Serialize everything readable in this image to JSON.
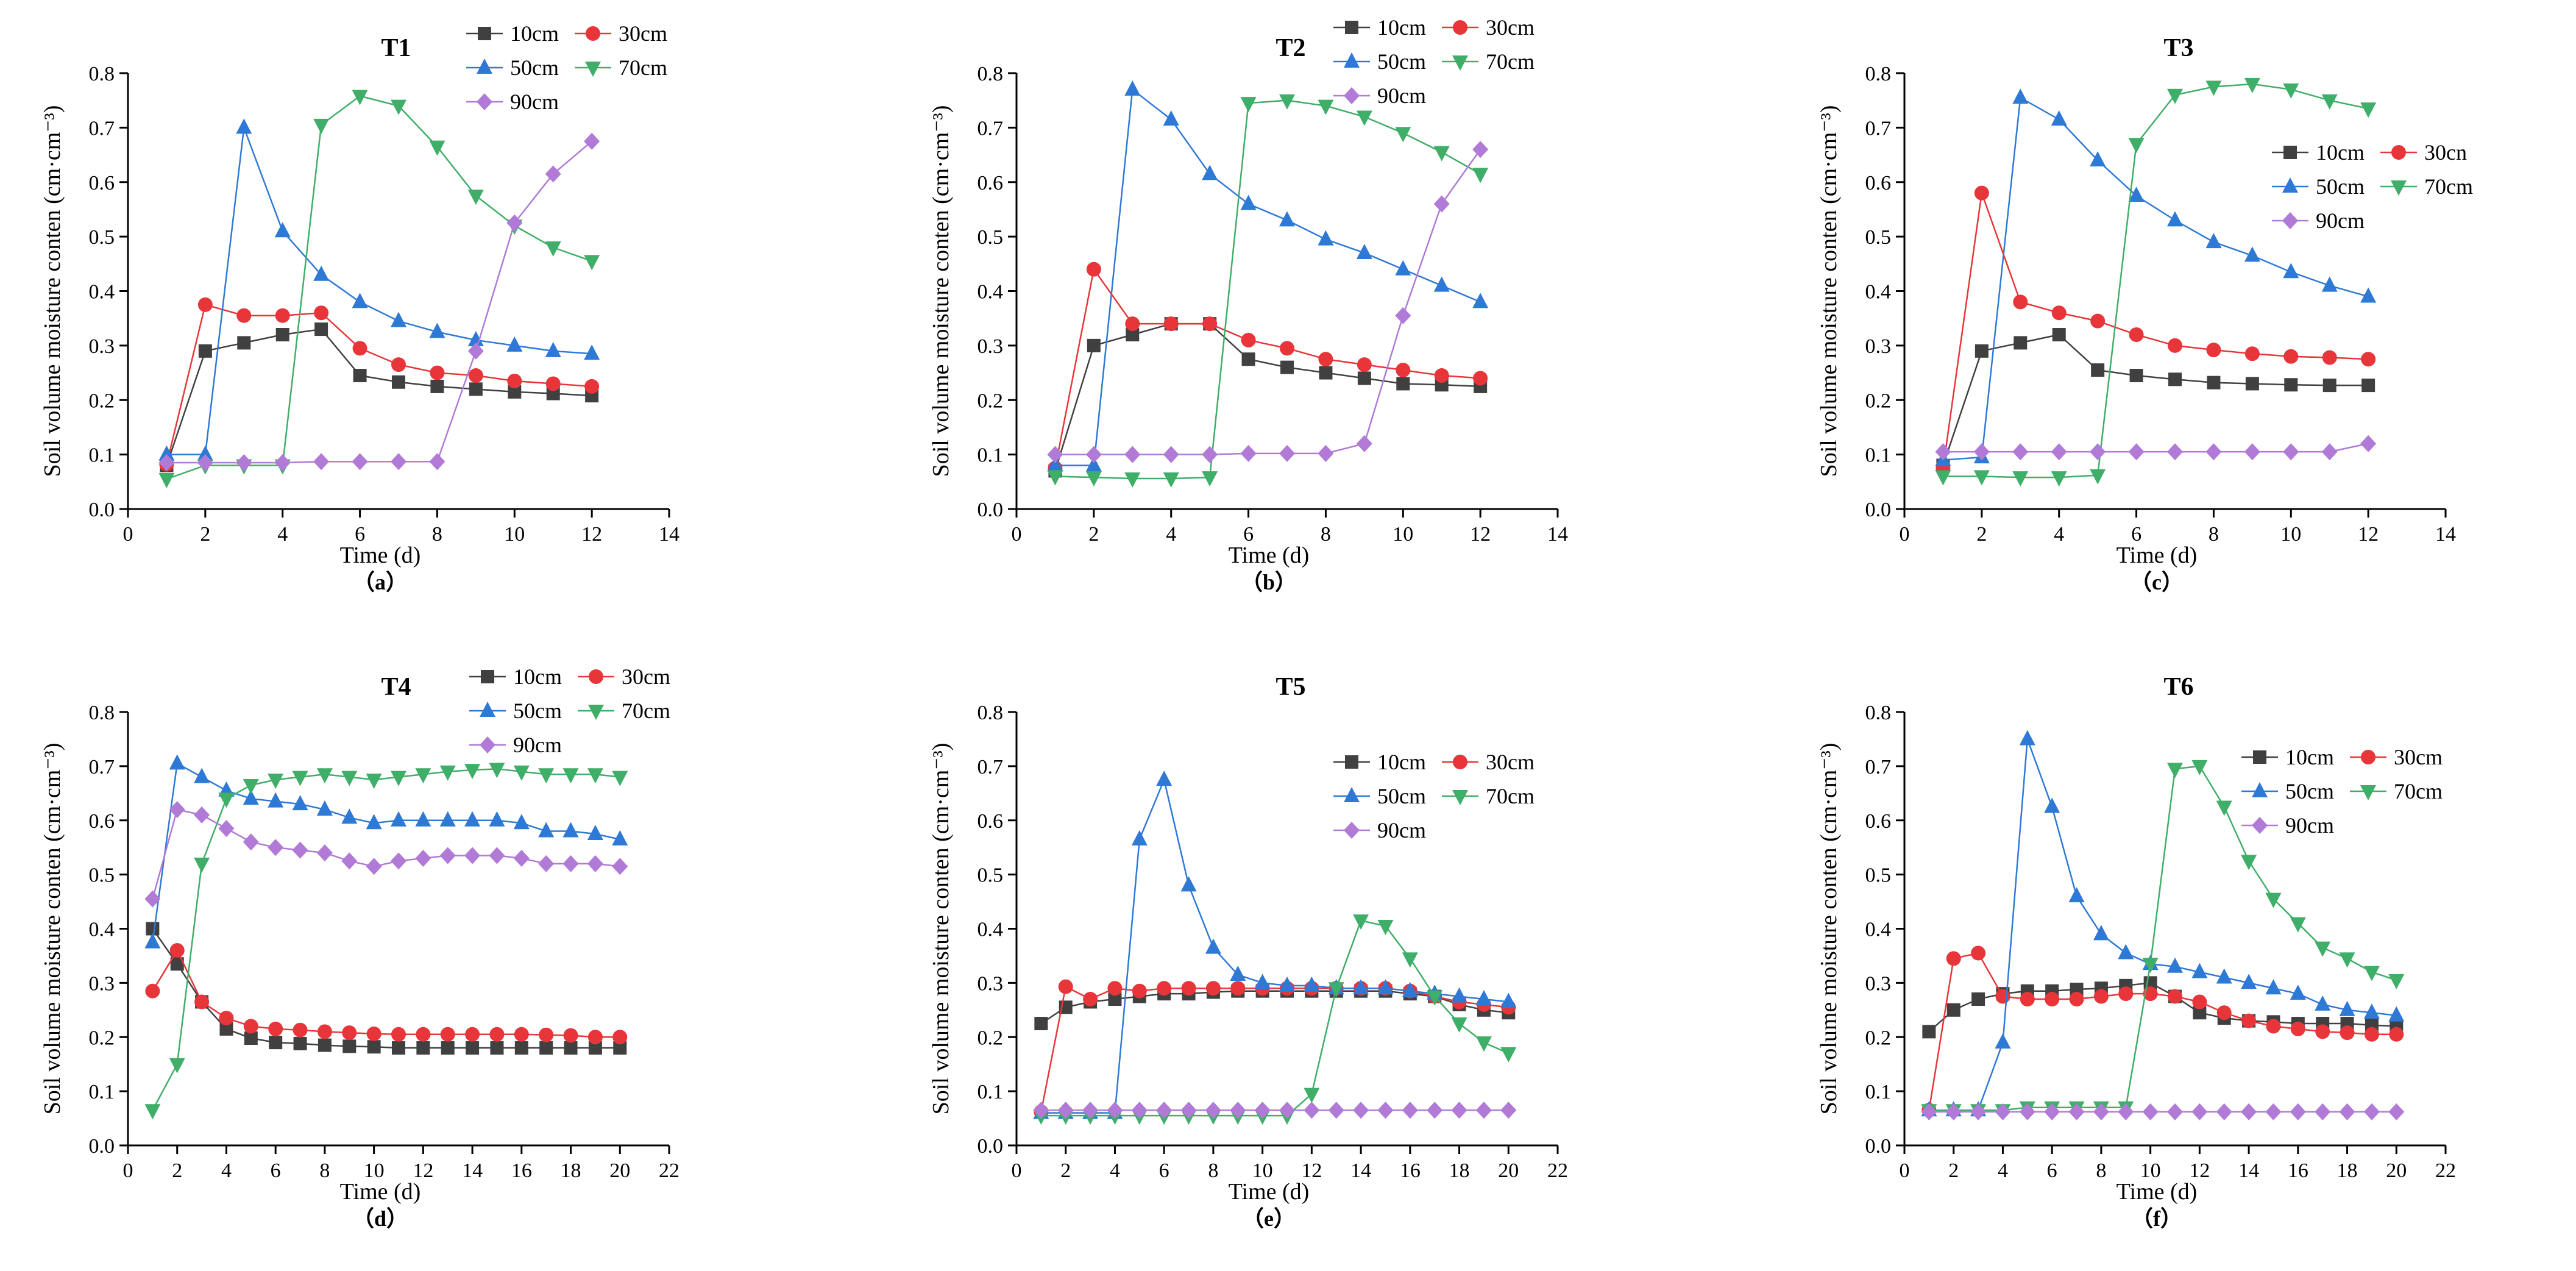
{
  "colors": {
    "10cm": "#404040",
    "30cm": "#e8353a",
    "50cm": "#2f79d6",
    "70cm": "#3fae68",
    "90cm": "#b07ad6",
    "axis": "#000000"
  },
  "series_markers": {
    "10cm": "square",
    "30cm": "circle",
    "50cm": "triangle-up",
    "70cm": "triangle-down",
    "90cm": "diamond"
  },
  "chart_data": [
    {
      "type": "line",
      "title": "T1",
      "caption": "（a）",
      "xlabel": "Time (d)",
      "ylabel": "Soil volume moisture conten (cm·cm⁻³)",
      "xlim": [
        0,
        14
      ],
      "ylim": [
        0,
        0.8
      ],
      "xticks": [
        0,
        2,
        4,
        6,
        8,
        10,
        12,
        14
      ],
      "yticks": [
        0.0,
        0.1,
        0.2,
        0.3,
        0.4,
        0.5,
        0.6,
        0.7,
        0.8
      ],
      "x": [
        1,
        2,
        3,
        4,
        5,
        6,
        7,
        8,
        9,
        10,
        11,
        12
      ],
      "legend_labels": [
        "10cm",
        "30cm",
        "50cm",
        "70cm",
        "90cm"
      ],
      "series": [
        {
          "name": "10cm",
          "values": [
            0.08,
            0.29,
            0.305,
            0.32,
            0.33,
            0.245,
            0.233,
            0.225,
            0.22,
            0.215,
            0.212,
            0.208
          ]
        },
        {
          "name": "30cm",
          "values": [
            0.082,
            0.375,
            0.355,
            0.355,
            0.36,
            0.295,
            0.265,
            0.25,
            0.245,
            0.235,
            0.23,
            0.225
          ]
        },
        {
          "name": "50cm",
          "values": [
            0.1,
            0.1,
            0.7,
            0.51,
            0.43,
            0.38,
            0.345,
            0.325,
            0.31,
            0.3,
            0.29,
            0.285
          ]
        },
        {
          "name": "70cm",
          "values": [
            0.055,
            0.08,
            0.08,
            0.08,
            0.705,
            0.758,
            0.74,
            0.665,
            0.575,
            0.52,
            0.48,
            0.455
          ]
        },
        {
          "name": "90cm",
          "values": [
            0.085,
            0.085,
            0.085,
            0.085,
            0.087,
            0.087,
            0.087,
            0.087,
            0.29,
            0.525,
            0.615,
            0.675
          ]
        }
      ]
    },
    {
      "type": "line",
      "title": "T2",
      "caption": "（b）",
      "xlabel": "Time (d)",
      "ylabel": "Soil volume moisture conten (cm·cm⁻³)",
      "xlim": [
        0,
        14
      ],
      "ylim": [
        0,
        0.8
      ],
      "xticks": [
        0,
        2,
        4,
        6,
        8,
        10,
        12,
        14
      ],
      "yticks": [
        0.0,
        0.1,
        0.2,
        0.3,
        0.4,
        0.5,
        0.6,
        0.7,
        0.8
      ],
      "x": [
        1,
        2,
        3,
        4,
        5,
        6,
        7,
        8,
        9,
        10,
        11,
        12
      ],
      "legend_labels": [
        "10cm",
        "30cm",
        "50cm",
        "70cm",
        "90cm"
      ],
      "series": [
        {
          "name": "10cm",
          "values": [
            0.07,
            0.3,
            0.32,
            0.34,
            0.34,
            0.275,
            0.26,
            0.25,
            0.24,
            0.23,
            0.228,
            0.225
          ]
        },
        {
          "name": "30cm",
          "values": [
            0.075,
            0.44,
            0.34,
            0.34,
            0.34,
            0.31,
            0.295,
            0.275,
            0.265,
            0.255,
            0.245,
            0.24
          ]
        },
        {
          "name": "50cm",
          "values": [
            0.08,
            0.08,
            0.77,
            0.715,
            0.615,
            0.56,
            0.53,
            0.495,
            0.47,
            0.44,
            0.41,
            0.38
          ]
        },
        {
          "name": "70cm",
          "values": [
            0.06,
            0.058,
            0.056,
            0.056,
            0.058,
            0.745,
            0.75,
            0.74,
            0.72,
            0.69,
            0.655,
            0.615
          ]
        },
        {
          "name": "90cm",
          "values": [
            0.1,
            0.1,
            0.1,
            0.1,
            0.1,
            0.102,
            0.102,
            0.102,
            0.12,
            0.355,
            0.56,
            0.66
          ]
        }
      ]
    },
    {
      "type": "line",
      "title": "T3",
      "caption": "（c）",
      "xlabel": "Time (d)",
      "ylabel": "Soil volume moisture conten (cm·cm⁻³)",
      "xlim": [
        0,
        14
      ],
      "ylim": [
        0,
        0.8
      ],
      "xticks": [
        0,
        2,
        4,
        6,
        8,
        10,
        12,
        14
      ],
      "yticks": [
        0.0,
        0.1,
        0.2,
        0.3,
        0.4,
        0.5,
        0.6,
        0.7,
        0.8
      ],
      "x": [
        1,
        2,
        3,
        4,
        5,
        6,
        7,
        8,
        9,
        10,
        11,
        12
      ],
      "legend_labels": [
        "10cm",
        "30cn",
        "50cm",
        "70cm",
        "90cm"
      ],
      "series": [
        {
          "name": "10cm",
          "values": [
            0.08,
            0.29,
            0.305,
            0.32,
            0.255,
            0.245,
            0.238,
            0.232,
            0.23,
            0.228,
            0.227,
            0.227
          ]
        },
        {
          "name": "30cm",
          "values": [
            0.075,
            0.58,
            0.38,
            0.36,
            0.345,
            0.32,
            0.3,
            0.292,
            0.285,
            0.28,
            0.278,
            0.275
          ]
        },
        {
          "name": "50cm",
          "values": [
            0.09,
            0.095,
            0.755,
            0.715,
            0.64,
            0.575,
            0.53,
            0.49,
            0.465,
            0.435,
            0.41,
            0.39
          ]
        },
        {
          "name": "70cm",
          "values": [
            0.06,
            0.06,
            0.058,
            0.058,
            0.062,
            0.67,
            0.76,
            0.775,
            0.78,
            0.77,
            0.75,
            0.735
          ]
        },
        {
          "name": "90cm",
          "values": [
            0.105,
            0.105,
            0.105,
            0.105,
            0.105,
            0.105,
            0.105,
            0.105,
            0.105,
            0.105,
            0.105,
            0.12
          ]
        }
      ]
    },
    {
      "type": "line",
      "title": "T4",
      "caption": "（d）",
      "xlabel": "Time (d)",
      "ylabel": "Soil volume moisture conten (cm·cm⁻³)",
      "xlim": [
        0,
        22
      ],
      "ylim": [
        0,
        0.8
      ],
      "xticks": [
        0,
        2,
        4,
        6,
        8,
        10,
        12,
        14,
        16,
        18,
        20,
        22
      ],
      "yticks": [
        0.0,
        0.1,
        0.2,
        0.3,
        0.4,
        0.5,
        0.6,
        0.7,
        0.8
      ],
      "x": [
        1,
        2,
        3,
        4,
        5,
        6,
        7,
        8,
        9,
        10,
        11,
        12,
        13,
        14,
        15,
        16,
        17,
        18,
        19,
        20
      ],
      "legend_labels": [
        "10cm",
        "30cm",
        "50cm",
        "70cm",
        "90cm"
      ],
      "series": [
        {
          "name": "10cm",
          "values": [
            0.4,
            0.335,
            0.265,
            0.215,
            0.198,
            0.19,
            0.188,
            0.185,
            0.183,
            0.182,
            0.18,
            0.18,
            0.18,
            0.18,
            0.18,
            0.18,
            0.18,
            0.18,
            0.18,
            0.18
          ]
        },
        {
          "name": "30cm",
          "values": [
            0.285,
            0.36,
            0.265,
            0.235,
            0.22,
            0.215,
            0.213,
            0.21,
            0.208,
            0.206,
            0.205,
            0.205,
            0.205,
            0.205,
            0.205,
            0.205,
            0.204,
            0.203,
            0.2,
            0.2
          ]
        },
        {
          "name": "50cm",
          "values": [
            0.375,
            0.705,
            0.68,
            0.655,
            0.64,
            0.635,
            0.63,
            0.62,
            0.605,
            0.595,
            0.6,
            0.6,
            0.6,
            0.6,
            0.6,
            0.595,
            0.58,
            0.58,
            0.575,
            0.565
          ]
        },
        {
          "name": "70cm",
          "values": [
            0.065,
            0.15,
            0.52,
            0.64,
            0.665,
            0.675,
            0.68,
            0.685,
            0.68,
            0.675,
            0.68,
            0.685,
            0.69,
            0.693,
            0.695,
            0.69,
            0.685,
            0.685,
            0.685,
            0.68
          ]
        },
        {
          "name": "90cm",
          "values": [
            0.455,
            0.62,
            0.61,
            0.585,
            0.56,
            0.55,
            0.545,
            0.54,
            0.525,
            0.515,
            0.525,
            0.53,
            0.535,
            0.535,
            0.535,
            0.53,
            0.52,
            0.52,
            0.52,
            0.515
          ]
        }
      ]
    },
    {
      "type": "line",
      "title": "T5",
      "caption": "（e）",
      "xlabel": "Time (d)",
      "ylabel": "Soil volume moisture conten (cm·cm⁻³)",
      "xlim": [
        0,
        22
      ],
      "ylim": [
        0,
        0.8
      ],
      "xticks": [
        0,
        2,
        4,
        6,
        8,
        10,
        12,
        14,
        16,
        18,
        20,
        22
      ],
      "yticks": [
        0.0,
        0.1,
        0.2,
        0.3,
        0.4,
        0.5,
        0.6,
        0.7,
        0.8
      ],
      "x": [
        1,
        2,
        3,
        4,
        5,
        6,
        7,
        8,
        9,
        10,
        11,
        12,
        13,
        14,
        15,
        16,
        17,
        18,
        19,
        20
      ],
      "legend_labels": [
        "10cm",
        "30cm",
        "50cm",
        "70cm",
        "90cm"
      ],
      "series": [
        {
          "name": "10cm",
          "values": [
            0.225,
            0.255,
            0.265,
            0.27,
            0.275,
            0.28,
            0.28,
            0.283,
            0.285,
            0.285,
            0.285,
            0.285,
            0.285,
            0.285,
            0.285,
            0.28,
            0.275,
            0.26,
            0.25,
            0.245
          ]
        },
        {
          "name": "30cm",
          "values": [
            0.062,
            0.293,
            0.27,
            0.29,
            0.285,
            0.29,
            0.29,
            0.29,
            0.29,
            0.29,
            0.29,
            0.29,
            0.29,
            0.29,
            0.29,
            0.285,
            0.275,
            0.265,
            0.26,
            0.255
          ]
        },
        {
          "name": "50cm",
          "values": [
            0.06,
            0.06,
            0.06,
            0.06,
            0.565,
            0.675,
            0.48,
            0.365,
            0.315,
            0.3,
            0.295,
            0.295,
            0.29,
            0.29,
            0.29,
            0.285,
            0.28,
            0.275,
            0.27,
            0.265
          ]
        },
        {
          "name": "70cm",
          "values": [
            0.055,
            0.055,
            0.055,
            0.055,
            0.055,
            0.055,
            0.055,
            0.055,
            0.055,
            0.055,
            0.055,
            0.095,
            0.29,
            0.415,
            0.405,
            0.345,
            0.275,
            0.225,
            0.19,
            0.17
          ]
        },
        {
          "name": "90cm",
          "values": [
            0.065,
            0.065,
            0.065,
            0.065,
            0.065,
            0.065,
            0.065,
            0.065,
            0.065,
            0.065,
            0.065,
            0.065,
            0.065,
            0.065,
            0.065,
            0.065,
            0.065,
            0.065,
            0.065,
            0.065
          ]
        }
      ]
    },
    {
      "type": "line",
      "title": "T6",
      "caption": "（f）",
      "xlabel": "Time (d)",
      "ylabel": "Soil volume moisture conten (cm·cm⁻³)",
      "xlim": [
        0,
        22
      ],
      "ylim": [
        0,
        0.8
      ],
      "xticks": [
        0,
        2,
        4,
        6,
        8,
        10,
        12,
        14,
        16,
        18,
        20,
        22
      ],
      "yticks": [
        0.0,
        0.1,
        0.2,
        0.3,
        0.4,
        0.5,
        0.6,
        0.7,
        0.8
      ],
      "x": [
        1,
        2,
        3,
        4,
        5,
        6,
        7,
        8,
        9,
        10,
        11,
        12,
        13,
        14,
        15,
        16,
        17,
        18,
        19,
        20
      ],
      "legend_labels": [
        "10cm",
        "30cm",
        "50cm",
        "70cm",
        "90cm"
      ],
      "series": [
        {
          "name": "10cm",
          "values": [
            0.21,
            0.25,
            0.27,
            0.28,
            0.285,
            0.285,
            0.288,
            0.29,
            0.295,
            0.3,
            0.275,
            0.245,
            0.235,
            0.23,
            0.228,
            0.225,
            0.225,
            0.225,
            0.222,
            0.22
          ]
        },
        {
          "name": "30cm",
          "values": [
            0.065,
            0.345,
            0.355,
            0.275,
            0.27,
            0.27,
            0.27,
            0.275,
            0.28,
            0.28,
            0.275,
            0.265,
            0.245,
            0.23,
            0.22,
            0.215,
            0.21,
            0.208,
            0.205,
            0.205
          ]
        },
        {
          "name": "50cm",
          "values": [
            0.065,
            0.065,
            0.065,
            0.19,
            0.75,
            0.625,
            0.46,
            0.39,
            0.355,
            0.335,
            0.33,
            0.32,
            0.31,
            0.3,
            0.29,
            0.28,
            0.26,
            0.25,
            0.245,
            0.24
          ]
        },
        {
          "name": "70cm",
          "values": [
            0.065,
            0.065,
            0.065,
            0.065,
            0.07,
            0.07,
            0.07,
            0.07,
            0.07,
            0.335,
            0.695,
            0.7,
            0.625,
            0.525,
            0.455,
            0.41,
            0.365,
            0.345,
            0.32,
            0.305
          ]
        },
        {
          "name": "90cm",
          "values": [
            0.062,
            0.062,
            0.062,
            0.062,
            0.062,
            0.062,
            0.062,
            0.062,
            0.062,
            0.062,
            0.062,
            0.062,
            0.062,
            0.062,
            0.062,
            0.062,
            0.062,
            0.062,
            0.062,
            0.062
          ]
        }
      ]
    }
  ]
}
